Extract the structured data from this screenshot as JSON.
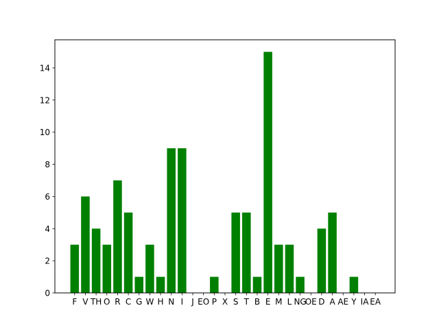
{
  "chart_data": {
    "type": "bar",
    "title": "",
    "xlabel": "",
    "ylabel": "",
    "categories": [
      "F",
      "V",
      "TH",
      "O",
      "R",
      "C",
      "G",
      "W",
      "H",
      "N",
      "I",
      "J",
      "EO",
      "P",
      "X",
      "S",
      "T",
      "B",
      "E",
      "M",
      "L",
      "NG",
      "OE",
      "D",
      "A",
      "AE",
      "Y",
      "IA",
      "EA"
    ],
    "values": [
      3,
      6,
      4,
      3,
      7,
      5,
      1,
      3,
      1,
      9,
      9,
      0,
      0,
      1,
      0,
      5,
      5,
      1,
      15,
      3,
      3,
      1,
      0,
      4,
      5,
      0,
      1,
      0,
      0
    ],
    "yticks": [
      0,
      2,
      4,
      6,
      8,
      10,
      12,
      14
    ],
    "ylim": [
      0,
      15.75
    ],
    "grid": false,
    "legend": false,
    "bar_color": "#008000"
  }
}
